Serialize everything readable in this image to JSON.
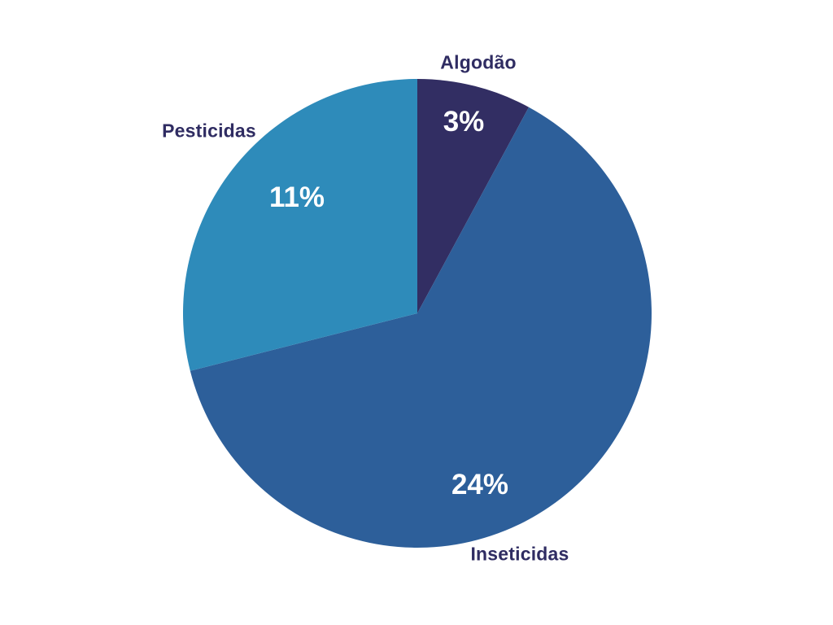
{
  "chart_data": {
    "type": "pie",
    "background_color": "#ffffff",
    "label_text_color": "#2f2c62",
    "pct_text_color": "#ffffff",
    "start_angle_deg": 0,
    "direction": "clockwise",
    "legend": "none",
    "slices": [
      {
        "name": "algodao",
        "label": "Algodão",
        "value": 3,
        "pct_label": "3%",
        "color": "#322e63"
      },
      {
        "name": "inseticidas",
        "label": "Inseticidas",
        "value": 24,
        "pct_label": "24%",
        "color": "#2d5f9a"
      },
      {
        "name": "pesticidas",
        "label": "Pesticidas",
        "value": 11,
        "pct_label": "11%",
        "color": "#2e8bba"
      }
    ]
  }
}
